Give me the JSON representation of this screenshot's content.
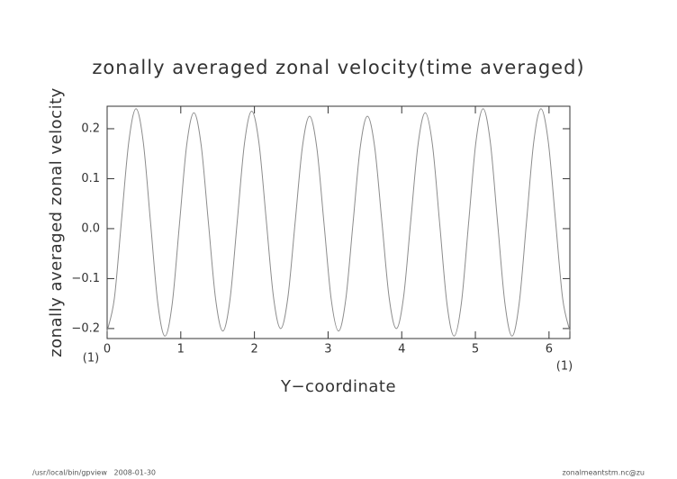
{
  "chart_data": {
    "type": "line",
    "title": "zonally averaged zonal velocity(time averaged)",
    "xlabel": "Y−coordinate",
    "ylabel": "zonally averaged zonal velocity",
    "yunits": "(1)",
    "xunits": "(1)",
    "x": [
      0,
      0.098,
      0.196,
      0.295,
      0.393,
      0.491,
      0.589,
      0.687,
      0.785,
      0.884,
      0.982,
      1.08,
      1.178,
      1.276,
      1.374,
      1.473,
      1.571,
      1.669,
      1.767,
      1.865,
      1.963,
      2.062,
      2.16,
      2.258,
      2.356,
      2.454,
      2.553,
      2.651,
      2.749,
      2.847,
      2.945,
      3.043,
      3.142,
      3.24,
      3.338,
      3.436,
      3.534,
      3.633,
      3.731,
      3.829,
      3.927,
      4.025,
      4.123,
      4.222,
      4.32,
      4.418,
      4.516,
      4.614,
      4.712,
      4.811,
      4.909,
      5.007,
      5.105,
      5.203,
      5.301,
      5.4,
      5.498,
      5.596,
      5.694,
      5.792,
      5.89,
      5.989,
      6.087,
      6.185,
      6.283
    ],
    "series": [
      {
        "color": "#8c8c8c",
        "values": [
          -0.205,
          -0.14,
          0.018,
          0.175,
          0.24,
          0.173,
          0.013,
          -0.148,
          -0.215,
          -0.15,
          0.009,
          0.167,
          0.232,
          0.168,
          0.014,
          -0.141,
          -0.205,
          -0.141,
          0.015,
          0.171,
          0.235,
          0.171,
          0.018,
          -0.136,
          -0.2,
          -0.138,
          0.013,
          0.163,
          0.225,
          0.162,
          0.01,
          -0.142,
          -0.205,
          -0.142,
          0.01,
          0.162,
          0.225,
          0.163,
          0.013,
          -0.138,
          -0.2,
          -0.137,
          0.016,
          0.169,
          0.232,
          0.167,
          0.009,
          -0.15,
          -0.215,
          -0.148,
          0.013,
          0.173,
          0.24,
          0.173,
          0.013,
          -0.148,
          -0.215,
          -0.148,
          0.013,
          0.173,
          0.24,
          0.175,
          0.018,
          -0.14,
          -0.205
        ]
      }
    ],
    "xlim": [
      0,
      6.283
    ],
    "ylim": [
      -0.22,
      0.245
    ],
    "xticks": [
      0,
      1,
      2,
      3,
      4,
      5,
      6
    ],
    "yticks": [
      {
        "value": -0.2,
        "label": "−0.2"
      },
      {
        "value": -0.1,
        "label": "−0.1"
      },
      {
        "value": 0,
        "label": "0.0"
      },
      0.1,
      0.2
    ],
    "grid": false
  },
  "footer": {
    "left": "/usr/local/bin/gpview   2008-01-30",
    "right": "zonalmeantstm.nc@zu"
  }
}
